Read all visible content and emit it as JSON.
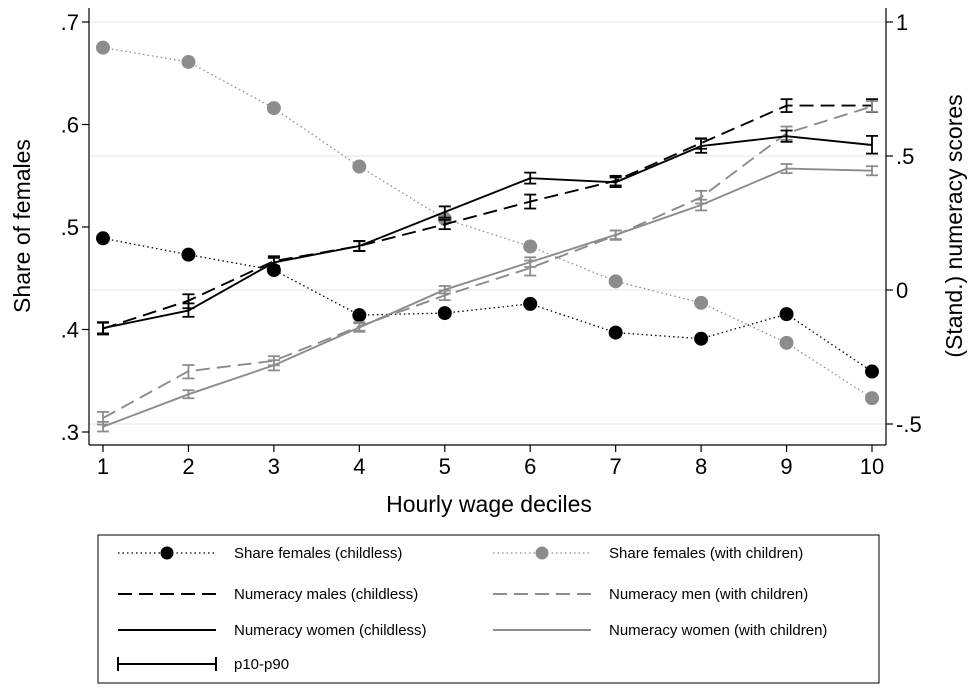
{
  "chart_data": {
    "type": "line",
    "xlabel": "Hourly wage deciles",
    "ylabel_left": "Share of females",
    "ylabel_right": "(Stand.) numeracy scores",
    "x": [
      1,
      2,
      3,
      4,
      5,
      6,
      7,
      8,
      9,
      10
    ],
    "xlim": [
      1,
      10
    ],
    "ylim_left": [
      0.3,
      0.7
    ],
    "ylim_right": [
      -0.5,
      1.0
    ],
    "left_ticks": [
      {
        "value": 0.3,
        "label": ".3"
      },
      {
        "value": 0.4,
        "label": ".4"
      },
      {
        "value": 0.5,
        "label": ".5"
      },
      {
        "value": 0.6,
        "label": ".6"
      },
      {
        "value": 0.7,
        "label": ".7"
      }
    ],
    "right_ticks": [
      {
        "value": -0.5,
        "label": "-.5"
      },
      {
        "value": 0,
        "label": "0"
      },
      {
        "value": 0.5,
        "label": ".5"
      },
      {
        "value": 1,
        "label": "1"
      }
    ],
    "grid": true,
    "legend_position": "bottom",
    "series": [
      {
        "name": "Share females (childless)",
        "axis": "left",
        "style": "dotted-marker",
        "color": "#000000",
        "values": [
          0.489,
          0.473,
          0.458,
          0.414,
          0.416,
          0.425,
          0.397,
          0.391,
          0.415,
          0.359
        ]
      },
      {
        "name": "Share females (with children)",
        "axis": "left",
        "style": "dotted-marker",
        "color": "#8c8c8c",
        "values": [
          0.675,
          0.661,
          0.616,
          0.559,
          0.508,
          0.481,
          0.447,
          0.426,
          0.387,
          0.333
        ]
      },
      {
        "name": "Numeracy males (childless)",
        "axis": "right",
        "style": "dashed",
        "color": "#000000",
        "values": [
          -0.144,
          -0.04,
          0.108,
          0.164,
          0.245,
          0.33,
          0.408,
          0.548,
          0.688,
          0.688
        ],
        "ci_low": [
          -0.166,
          -0.068,
          0.09,
          0.145,
          0.227,
          0.304,
          0.39,
          0.527,
          0.664,
          0.664
        ],
        "ci_high": [
          -0.122,
          -0.016,
          0.126,
          0.183,
          0.262,
          0.356,
          0.426,
          0.566,
          0.712,
          0.712
        ]
      },
      {
        "name": "Numeracy men (with children)",
        "axis": "right",
        "style": "dashed",
        "color": "#8c8c8c",
        "values": [
          -0.478,
          -0.303,
          -0.264,
          -0.136,
          -0.02,
          0.082,
          0.204,
          0.346,
          0.585,
          0.685
        ],
        "ci_low": [
          -0.502,
          -0.33,
          -0.281,
          -0.152,
          -0.038,
          0.054,
          0.187,
          0.323,
          0.56,
          0.665
        ],
        "ci_high": [
          -0.455,
          -0.28,
          -0.247,
          -0.12,
          -0.002,
          0.11,
          0.222,
          0.37,
          0.61,
          0.705
        ]
      },
      {
        "name": "Numeracy women (childless)",
        "axis": "right",
        "style": "solid",
        "color": "#000000",
        "values": [
          -0.142,
          -0.077,
          0.103,
          0.164,
          0.291,
          0.417,
          0.402,
          0.537,
          0.574,
          0.541
        ],
        "ci_low": [
          -0.162,
          -0.1,
          0.085,
          0.146,
          0.27,
          0.397,
          0.384,
          0.512,
          0.553,
          0.509
        ],
        "ci_high": [
          -0.12,
          -0.05,
          0.12,
          0.182,
          0.312,
          0.438,
          0.42,
          0.564,
          0.595,
          0.575
        ]
      },
      {
        "name": "Numeracy women (with children)",
        "axis": "right",
        "style": "solid",
        "color": "#8c8c8c",
        "values": [
          -0.51,
          -0.389,
          -0.281,
          -0.14,
          0.001,
          0.104,
          0.206,
          0.317,
          0.453,
          0.445
        ],
        "ci_low": [
          -0.528,
          -0.404,
          -0.3,
          -0.156,
          -0.013,
          0.086,
          0.19,
          0.297,
          0.436,
          0.428
        ],
        "ci_high": [
          -0.492,
          -0.374,
          -0.262,
          -0.124,
          0.015,
          0.122,
          0.222,
          0.337,
          0.47,
          0.462
        ]
      }
    ],
    "legend": {
      "items": [
        {
          "label": "Share females (childless)",
          "kind": "dotted-marker",
          "color": "#000000"
        },
        {
          "label": "Share females (with children)",
          "kind": "dotted-marker",
          "color": "#8c8c8c"
        },
        {
          "label": "Numeracy males (childless)",
          "kind": "dashed",
          "color": "#000000"
        },
        {
          "label": "Numeracy men (with children)",
          "kind": "dashed",
          "color": "#8c8c8c"
        },
        {
          "label": "Numeracy women (childless)",
          "kind": "solid",
          "color": "#000000"
        },
        {
          "label": "Numeracy women (with children)",
          "kind": "solid",
          "color": "#8c8c8c"
        },
        {
          "label": "p10-p90",
          "kind": "errorbar",
          "color": "#000000"
        }
      ]
    }
  }
}
